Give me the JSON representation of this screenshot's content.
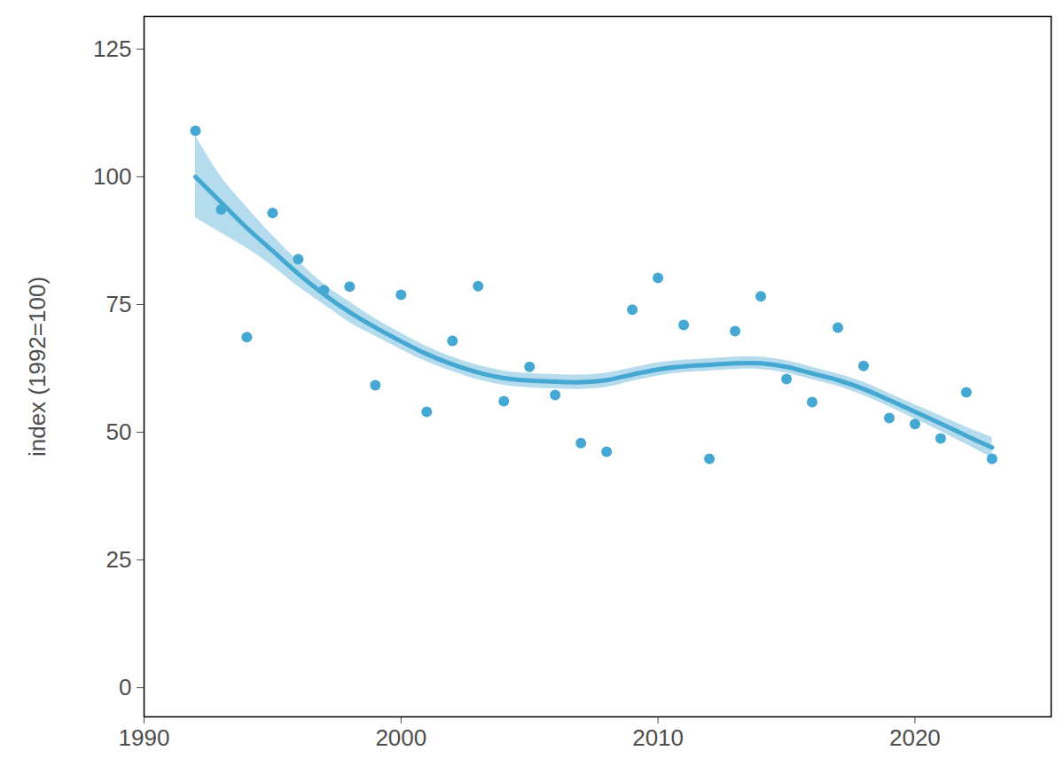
{
  "chart_data": {
    "type": "scatter",
    "y_label": "index (1992=100)",
    "color": "#45a8d2",
    "x": [
      1992,
      1993,
      1994,
      1995,
      1996,
      1997,
      1998,
      1999,
      2000,
      2001,
      2002,
      2003,
      2004,
      2005,
      2006,
      2007,
      2008,
      2009,
      2010,
      2011,
      2012,
      2013,
      2014,
      2015,
      2016,
      2017,
      2018,
      2019,
      2020,
      2021,
      2022,
      2023
    ],
    "values": [
      109,
      93.6,
      68.6,
      92.9,
      83.9,
      77.8,
      78.5,
      59.2,
      76.9,
      54,
      67.9,
      78.6,
      56.1,
      62.8,
      57.3,
      47.9,
      46.2,
      74,
      80.2,
      71,
      44.8,
      69.8,
      76.6,
      60.4,
      55.9,
      70.5,
      63,
      52.8,
      51.6,
      48.8,
      57.8,
      44.8
    ],
    "trend": {
      "type": "line",
      "values": [
        100,
        95,
        90,
        85.5,
        81,
        77,
        73.5,
        70.5,
        67.8,
        65.3,
        63.3,
        61.7,
        60.6,
        60.1,
        59.9,
        59.8,
        60.2,
        61.3,
        62.3,
        62.9,
        63.2,
        63.5,
        63.5,
        62.8,
        61.5,
        60.2,
        58.5,
        56.3,
        54,
        51.7,
        49.3,
        47
      ],
      "lower": [
        92,
        89,
        86,
        82.5,
        78.5,
        75,
        71.5,
        68.8,
        66.2,
        63.8,
        61.9,
        60.3,
        59.2,
        58.7,
        58.5,
        58.4,
        58.8,
        60,
        61,
        61.7,
        62,
        62.3,
        62.3,
        61.6,
        60.3,
        59,
        57.2,
        55,
        52.6,
        50.2,
        47.6,
        45
      ],
      "upper": [
        108,
        100,
        94,
        88.5,
        83.5,
        79,
        75.5,
        72.2,
        69.4,
        66.8,
        64.7,
        63.1,
        62,
        61.5,
        61.3,
        61.2,
        61.6,
        62.6,
        63.6,
        64.1,
        64.4,
        64.7,
        64.7,
        64,
        62.7,
        61.4,
        59.8,
        57.6,
        55.4,
        53.2,
        51,
        49
      ]
    },
    "xlim": [
      1990,
      2025.3
    ],
    "ylim": [
      -5.7,
      131.4
    ],
    "xticks": [
      1990,
      2000,
      2010,
      2020
    ],
    "yticks": [
      0,
      25,
      50,
      75,
      100,
      125
    ],
    "grid": false
  }
}
